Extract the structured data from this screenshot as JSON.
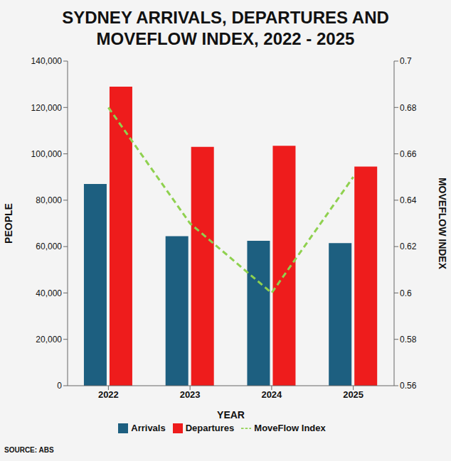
{
  "chart_data": {
    "type": "bar",
    "title": "SYDNEY ARRIVALS, DEPARTURES AND MOVEFLOW INDEX, 2022 - 2025",
    "xlabel": "YEAR",
    "ylabel": "PEOPLE",
    "y2label": "MOVEFLOW INDEX",
    "source": "SOURCE: ABS",
    "categories": [
      "2022",
      "2023",
      "2024",
      "2025"
    ],
    "series": [
      {
        "name": "Arrivals",
        "type": "bar",
        "color": "#1d5f80",
        "values": [
          87000,
          64500,
          62500,
          61500
        ]
      },
      {
        "name": "Departures",
        "type": "bar",
        "color": "#ee1c1c",
        "values": [
          129000,
          103000,
          103500,
          94500
        ]
      },
      {
        "name": "MoveFlow Index",
        "type": "line",
        "axis": "y2",
        "color": "#8fd14f",
        "line_style": "dashed",
        "marker": "none",
        "values": [
          0.68,
          0.63,
          0.6,
          0.65
        ]
      }
    ],
    "ylim": [
      0,
      140000
    ],
    "yticks": [
      0,
      {
        "value": 20000,
        "label": "20,000"
      },
      {
        "value": 40000,
        "label": "40,000"
      },
      {
        "value": 60000,
        "label": "60,000"
      },
      {
        "value": 80000,
        "label": "80,000"
      },
      {
        "value": 100000,
        "label": "100,000"
      },
      {
        "value": 120000,
        "label": "120,000"
      },
      {
        "value": 140000,
        "label": "140,000"
      }
    ],
    "y2lim": [
      0.56,
      0.7
    ],
    "y2ticks": [
      0.56,
      0.58,
      0.6,
      0.62,
      0.64,
      0.66,
      0.68,
      0.7
    ],
    "grid": false,
    "legend": "bottom"
  }
}
